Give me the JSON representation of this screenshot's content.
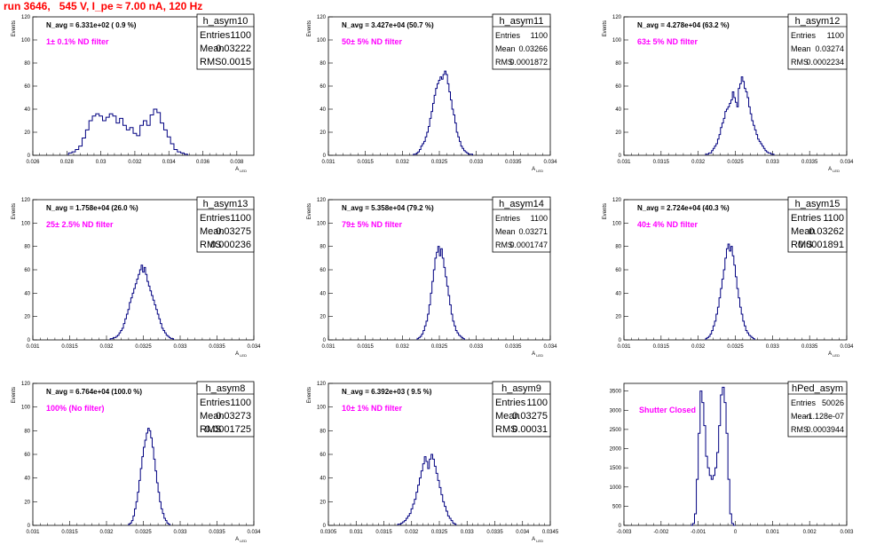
{
  "run_title": "run 3646,   545 V, I_pe ≈ 7.00 nA, 120 Hz",
  "chart_data": [
    {
      "type": "histogram",
      "name": "h_asym10",
      "annotation": "N_avg = 6.331e+02 ( 0.9 %)",
      "filter_label": "1± 0.1% ND filter",
      "stats": {
        "entries": "1100",
        "mean": "0.03222",
        "rms": "0.0015"
      },
      "xlabel": "A_LED",
      "ylabel": "Events",
      "xlim": [
        0.026,
        0.039
      ],
      "ylim": [
        0,
        120
      ],
      "xticks": [
        "0.026",
        "0.028",
        "0.03",
        "0.032",
        "0.034",
        "0.036",
        "0.038"
      ],
      "xtick_values": [
        0.026,
        0.028,
        0.03,
        0.032,
        0.034,
        0.036,
        0.038
      ],
      "yticks": [
        "0",
        "20",
        "40",
        "60",
        "80",
        "100",
        "120"
      ],
      "ytick_values": [
        0,
        20,
        40,
        60,
        80,
        100,
        120
      ],
      "bins": {
        "start": 0.0281,
        "width": 0.0002,
        "counts": [
          2,
          3,
          5,
          8,
          15,
          22,
          30,
          34,
          36,
          34,
          30,
          33,
          36,
          34,
          28,
          32,
          26,
          22,
          24,
          19,
          17,
          26,
          30,
          26,
          35,
          40,
          37,
          28,
          22,
          16,
          10,
          5,
          3,
          2,
          1
        ]
      }
    },
    {
      "type": "histogram",
      "name": "h_asym11",
      "annotation": "N_avg = 3.427e+04 (50.7 %)",
      "filter_label": "50± 5% ND filter",
      "stats": {
        "entries": "1100",
        "mean": "0.03266",
        "rms": "0.0001872"
      },
      "xlabel": "A_LED",
      "ylabel": "Events",
      "xlim": [
        0.031,
        0.034
      ],
      "ylim": [
        0,
        120
      ],
      "xticks": [
        "0.031",
        "0.0315",
        "0.032",
        "0.0325",
        "0.033",
        "0.0335",
        "0.034"
      ],
      "xtick_values": [
        0.031,
        0.0315,
        0.032,
        0.0325,
        0.033,
        0.0335,
        0.034
      ],
      "yticks": [
        "0",
        "20",
        "40",
        "60",
        "80",
        "100",
        "120"
      ],
      "ytick_values": [
        0,
        20,
        40,
        60,
        80,
        100,
        120
      ],
      "bins": {
        "start": 0.03215,
        "width": 2e-05,
        "counts": [
          1,
          1,
          2,
          3,
          5,
          8,
          10,
          12,
          16,
          20,
          25,
          32,
          38,
          45,
          52,
          58,
          62,
          65,
          68,
          66,
          70,
          73,
          70,
          62,
          55,
          48,
          40,
          35,
          28,
          20,
          16,
          12,
          8,
          6,
          4,
          3,
          2,
          1,
          1,
          1
        ]
      }
    },
    {
      "type": "histogram",
      "name": "h_asym12",
      "annotation": "N_avg = 4.278e+04 (63.2 %)",
      "filter_label": "63± 5% ND filter",
      "stats": {
        "entries": "1100",
        "mean": "0.03274",
        "rms": "0.0002234"
      },
      "xlabel": "A_LED",
      "ylabel": "Events",
      "xlim": [
        0.031,
        0.034
      ],
      "ylim": [
        0,
        120
      ],
      "xticks": [
        "0.031",
        "0.0315",
        "0.032",
        "0.0325",
        "0.033",
        "0.0335",
        "0.034"
      ],
      "xtick_values": [
        0.031,
        0.0315,
        0.032,
        0.0325,
        0.033,
        0.0335,
        0.034
      ],
      "yticks": [
        "0",
        "20",
        "40",
        "60",
        "80",
        "100",
        "120"
      ],
      "ytick_values": [
        0,
        20,
        40,
        60,
        80,
        100,
        120
      ],
      "bins": {
        "start": 0.0321,
        "width": 2e-05,
        "counts": [
          1,
          1,
          2,
          2,
          4,
          6,
          8,
          10,
          14,
          18,
          24,
          28,
          32,
          38,
          40,
          42,
          45,
          48,
          55,
          50,
          46,
          42,
          58,
          62,
          68,
          64,
          58,
          55,
          50,
          42,
          36,
          30,
          26,
          22,
          18,
          14,
          12,
          10,
          8,
          6,
          4,
          3,
          2,
          2,
          1,
          1
        ]
      }
    },
    {
      "type": "histogram",
      "name": "h_asym13",
      "annotation": "N_avg = 1.758e+04 (26.0 %)",
      "filter_label": "25± 2.5% ND filter",
      "stats": {
        "entries": "1100",
        "mean": "0.03275",
        "rms": "0.000236"
      },
      "xlabel": "A_LED",
      "ylabel": "Events",
      "xlim": [
        0.031,
        0.034
      ],
      "ylim": [
        0,
        120
      ],
      "xticks": [
        "0.031",
        "0.0315",
        "0.032",
        "0.0325",
        "0.033",
        "0.0335",
        "0.034"
      ],
      "xtick_values": [
        0.031,
        0.0315,
        0.032,
        0.0325,
        0.033,
        0.0335,
        0.034
      ],
      "yticks": [
        "0",
        "20",
        "40",
        "60",
        "80",
        "100",
        "120"
      ],
      "ytick_values": [
        0,
        20,
        40,
        60,
        80,
        100,
        120
      ],
      "bins": {
        "start": 0.03205,
        "width": 2e-05,
        "counts": [
          1,
          1,
          2,
          2,
          3,
          4,
          6,
          8,
          10,
          14,
          18,
          22,
          26,
          32,
          36,
          40,
          44,
          48,
          52,
          56,
          60,
          64,
          58,
          62,
          56,
          50,
          46,
          42,
          38,
          34,
          30,
          26,
          22,
          18,
          14,
          10,
          8,
          6,
          4,
          3,
          2,
          1,
          1
        ]
      }
    },
    {
      "type": "histogram",
      "name": "h_asym14",
      "annotation": "N_avg = 5.358e+04 (79.2 %)",
      "filter_label": "79± 5% ND filter",
      "stats": {
        "entries": "1100",
        "mean": "0.03271",
        "rms": "0.0001747"
      },
      "xlabel": "A_LED",
      "ylabel": "Events",
      "xlim": [
        0.031,
        0.034
      ],
      "ylim": [
        0,
        120
      ],
      "xticks": [
        "0.031",
        "0.0315",
        "0.032",
        "0.0325",
        "0.033",
        "0.0335",
        "0.034"
      ],
      "xtick_values": [
        0.031,
        0.0315,
        0.032,
        0.0325,
        0.033,
        0.0335,
        0.034
      ],
      "yticks": [
        "0",
        "20",
        "40",
        "60",
        "80",
        "100",
        "120"
      ],
      "ytick_values": [
        0,
        20,
        40,
        60,
        80,
        100,
        120
      ],
      "bins": {
        "start": 0.0322,
        "width": 2e-05,
        "counts": [
          1,
          2,
          3,
          5,
          8,
          12,
          16,
          22,
          30,
          40,
          50,
          60,
          70,
          75,
          80,
          72,
          78,
          70,
          62,
          54,
          46,
          38,
          30,
          22,
          16,
          12,
          8,
          6,
          4,
          3,
          2,
          1
        ]
      }
    },
    {
      "type": "histogram",
      "name": "h_asym15",
      "annotation": "N_avg = 2.724e+04 (40.3 %)",
      "filter_label": "40± 4% ND filter",
      "stats": {
        "entries": "1100",
        "mean": "0.03262",
        "rms": "0.0001891"
      },
      "xlabel": "A_LED",
      "ylabel": "Events",
      "xlim": [
        0.031,
        0.034
      ],
      "ylim": [
        0,
        120
      ],
      "xticks": [
        "0.031",
        "0.0315",
        "0.032",
        "0.0325",
        "0.033",
        "0.0335",
        "0.034"
      ],
      "xtick_values": [
        0.031,
        0.0315,
        0.032,
        0.0325,
        0.033,
        0.0335,
        0.034
      ],
      "yticks": [
        "0",
        "20",
        "40",
        "60",
        "80",
        "100",
        "120"
      ],
      "ytick_values": [
        0,
        20,
        40,
        60,
        80,
        100,
        120
      ],
      "bins": {
        "start": 0.0321,
        "width": 2e-05,
        "counts": [
          1,
          2,
          3,
          5,
          8,
          12,
          16,
          22,
          28,
          36,
          44,
          52,
          60,
          70,
          78,
          82,
          76,
          80,
          72,
          64,
          54,
          44,
          36,
          28,
          22,
          16,
          12,
          8,
          6,
          4,
          3,
          2,
          1
        ]
      }
    },
    {
      "type": "histogram",
      "name": "h_asym8",
      "annotation": "N_avg = 6.764e+04 (100.0 %)",
      "filter_label": "100% (No filter)",
      "stats": {
        "entries": "1100",
        "mean": "0.03273",
        "rms": "0.0001725"
      },
      "xlabel": "A_LED",
      "ylabel": "Events",
      "xlim": [
        0.031,
        0.034
      ],
      "ylim": [
        0,
        120
      ],
      "xticks": [
        "0.031",
        "0.0315",
        "0.032",
        "0.0325",
        "0.033",
        "0.0335",
        "0.034"
      ],
      "xtick_values": [
        0.031,
        0.0315,
        0.032,
        0.0325,
        0.033,
        0.0335,
        0.034
      ],
      "yticks": [
        "0",
        "20",
        "40",
        "60",
        "80",
        "100",
        "120"
      ],
      "ytick_values": [
        0,
        20,
        40,
        60,
        80,
        100,
        120
      ],
      "bins": {
        "start": 0.0323,
        "width": 2e-05,
        "counts": [
          1,
          2,
          4,
          8,
          14,
          20,
          28,
          38,
          48,
          58,
          66,
          72,
          78,
          82,
          80,
          74,
          66,
          56,
          46,
          36,
          28,
          20,
          14,
          10,
          6,
          4,
          2,
          1
        ]
      }
    },
    {
      "type": "histogram",
      "name": "h_asym9",
      "annotation": "N_avg = 6.392e+03 ( 9.5 %)",
      "filter_label": "10± 1% ND filter",
      "stats": {
        "entries": "1100",
        "mean": "0.03275",
        "rms": "0.00031"
      },
      "xlabel": "A_LED",
      "ylabel": "Events",
      "xlim": [
        0.0305,
        0.0345
      ],
      "ylim": [
        0,
        120
      ],
      "xticks": [
        "0.0305",
        "0.031",
        "0.0315",
        "0.032",
        "0.0325",
        "0.033",
        "0.0335",
        "0.034",
        "0.0345"
      ],
      "xtick_values": [
        0.0305,
        0.031,
        0.0315,
        0.032,
        0.0325,
        0.033,
        0.0335,
        0.034,
        0.0345
      ],
      "yticks": [
        "0",
        "20",
        "40",
        "60",
        "80",
        "100",
        "120"
      ],
      "ytick_values": [
        0,
        20,
        40,
        60,
        80,
        100,
        120
      ],
      "bins": {
        "start": 0.03175,
        "width": 3e-05,
        "counts": [
          1,
          1,
          2,
          3,
          4,
          6,
          8,
          10,
          14,
          18,
          22,
          28,
          34,
          40,
          46,
          52,
          58,
          54,
          48,
          56,
          60,
          56,
          50,
          44,
          38,
          32,
          26,
          20,
          16,
          12,
          8,
          6,
          4,
          2,
          1
        ]
      }
    },
    {
      "type": "histogram",
      "name": "hPed_asym",
      "annotation": "Shutter Closed",
      "stats": {
        "entries": "50026",
        "mean": "-1.128e-07",
        "rms": "0.0003944"
      },
      "xlabel": "",
      "ylabel": "",
      "xlim": [
        -0.003,
        0.003
      ],
      "ylim": [
        0,
        3700
      ],
      "xticks": [
        "-0.003",
        "-0.002",
        "-0.001",
        "0",
        "0.001",
        "0.002",
        "0.003"
      ],
      "xtick_values": [
        -0.003,
        -0.002,
        -0.001,
        0,
        0.001,
        0.002,
        0.003
      ],
      "yticks": [
        "0",
        "500",
        "1000",
        "1500",
        "2000",
        "2500",
        "3000",
        "3500"
      ],
      "ytick_values": [
        0,
        500,
        1000,
        1500,
        2000,
        2500,
        3000,
        3500
      ],
      "bins": {
        "start": -0.0012,
        "width": 5e-05,
        "counts": [
          0,
          50,
          300,
          1200,
          2400,
          3500,
          3200,
          2600,
          1800,
          1500,
          1300,
          1200,
          1300,
          1500,
          1900,
          2600,
          3400,
          3600,
          3200,
          2400,
          1200,
          300,
          50,
          0
        ]
      }
    }
  ]
}
